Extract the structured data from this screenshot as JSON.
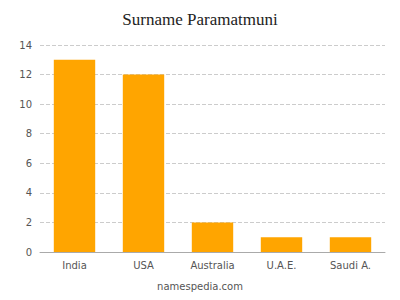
{
  "chart_data": {
    "type": "bar",
    "title": "Surname Paramatmuni",
    "categories": [
      "India",
      "USA",
      "Australia",
      "U.A.E.",
      "Saudi A."
    ],
    "values": [
      13,
      12,
      2,
      1,
      1
    ],
    "color": "#FFA500",
    "ylim": [
      0,
      14
    ],
    "yticks": [
      0,
      2,
      4,
      6,
      8,
      10,
      12,
      14
    ],
    "grid": true,
    "annotations": [
      "namespedia.com"
    ]
  }
}
